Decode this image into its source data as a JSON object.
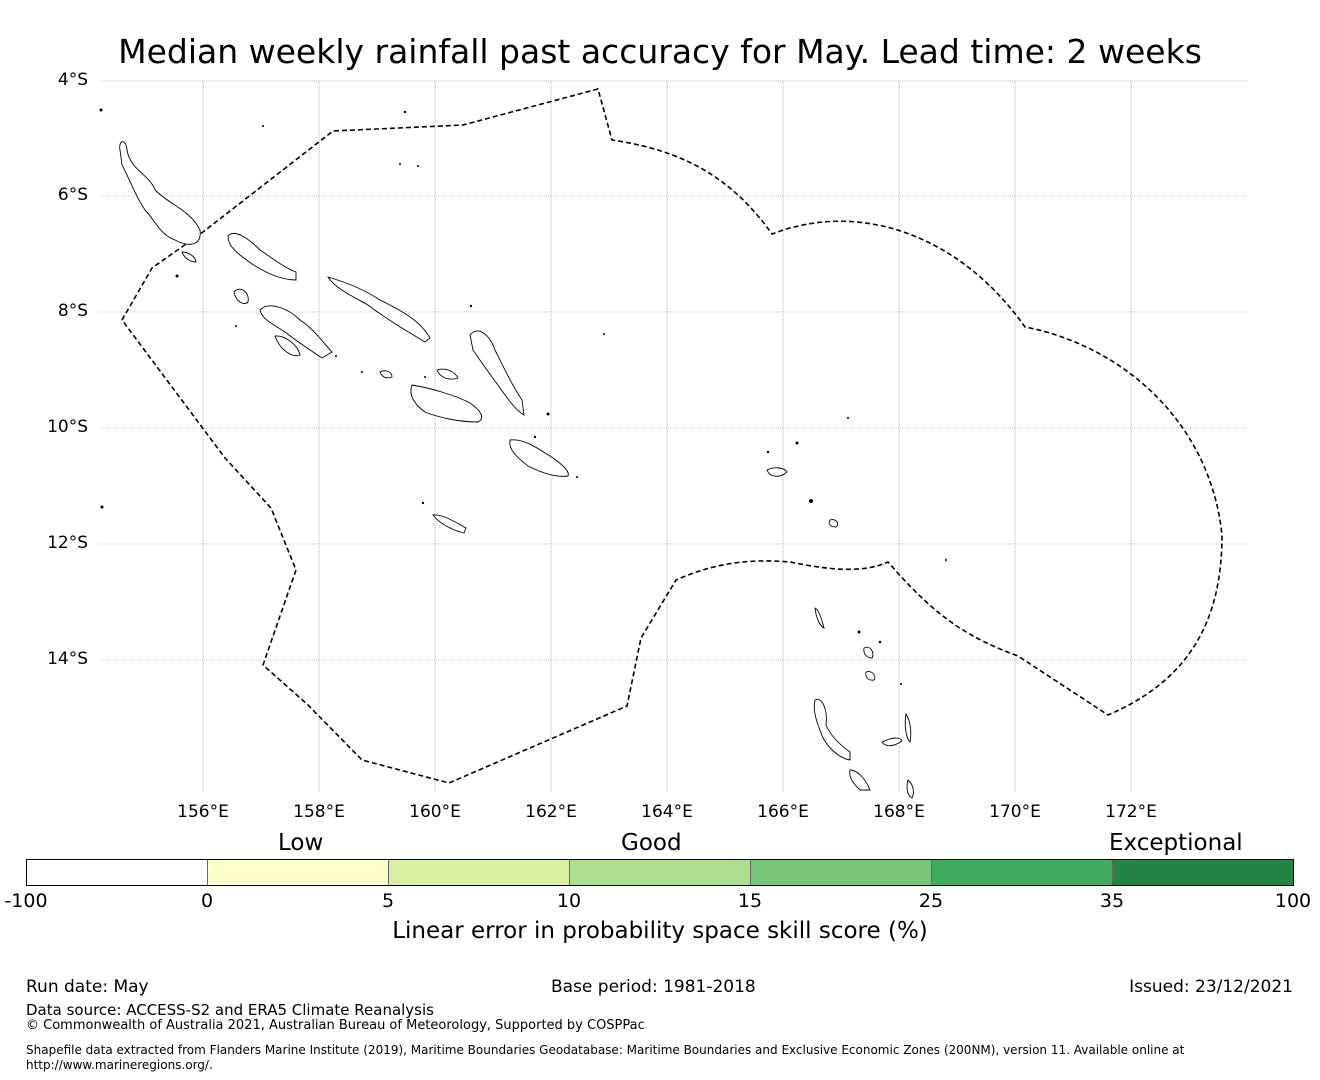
{
  "title": "Median weekly rainfall past accuracy for May. Lead time: 2 weeks",
  "lat_labels": [
    "4°S",
    "6°S",
    "8°S",
    "10°S",
    "12°S",
    "14°S"
  ],
  "lon_labels": [
    "156°E",
    "158°E",
    "160°E",
    "162°E",
    "164°E",
    "166°E",
    "168°E",
    "170°E",
    "172°E"
  ],
  "categories": {
    "low": "Low",
    "good": "Good",
    "exceptional": "Exceptional"
  },
  "colorbar": {
    "ticks": [
      "-100",
      "0",
      "5",
      "10",
      "15",
      "25",
      "35",
      "100"
    ],
    "colors": [
      "#ffffff",
      "#ffffcc",
      "#d9f0a3",
      "#addd8e",
      "#78c679",
      "#41ab5d",
      "#238443"
    ],
    "label": "Linear error in probability space skill score (%)"
  },
  "footer": {
    "run_date": "Run date: May",
    "base_period": "Base period: 1981-2018",
    "issued": "Issued: 23/12/2021",
    "data_source": "Data source: ACCESS-S2 and ERA5 Climate Reanalysis",
    "copyright": "© Commonwealth of Australia 2021, Australian Bureau of Meteorology, Supported by COSPPac",
    "shapefile_line1": "Shapefile data extracted from Flanders Marine Institute (2019), Maritime Boundaries Geodatabase: Maritime Boundaries and Exclusive Economic Zones (200NM), version 11. Available online at",
    "shapefile_line2": "http://www.marineregions.org/."
  }
}
